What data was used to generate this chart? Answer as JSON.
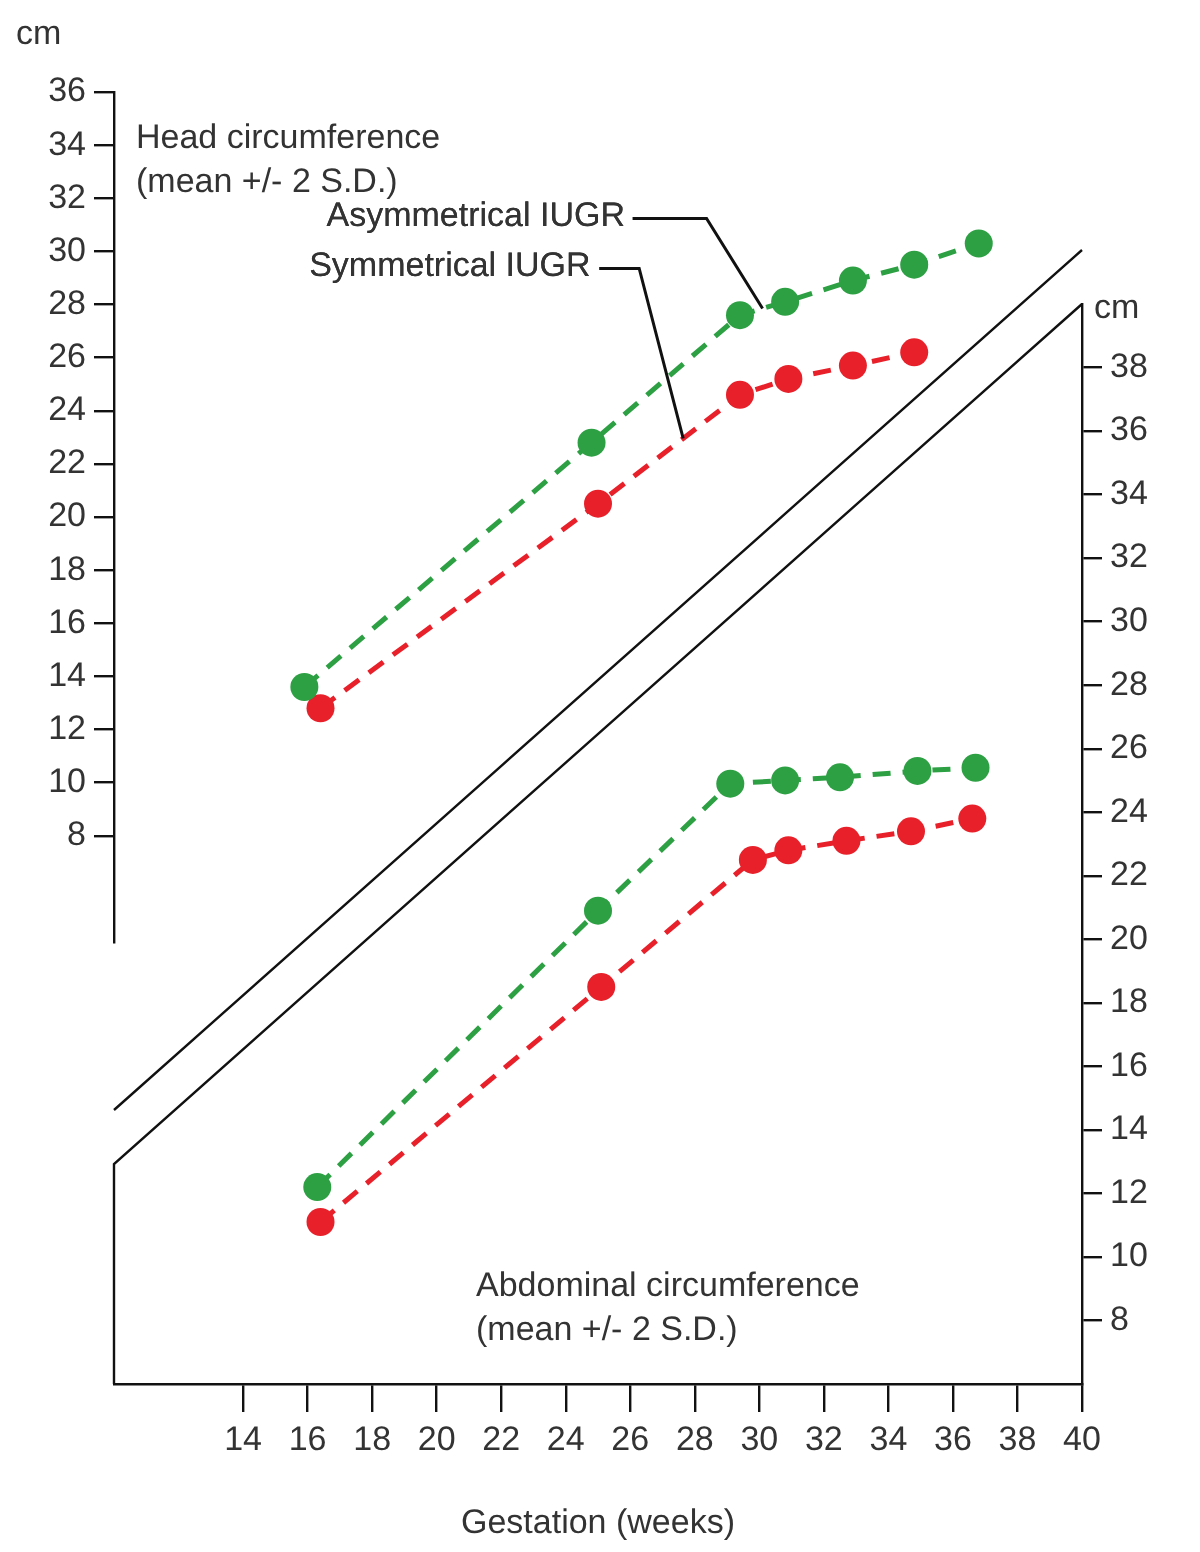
{
  "chart_data": [
    {
      "type": "line",
      "title": "Head circumference (mean +/- 2 S.D.)",
      "ylabel": "cm",
      "xlim": [
        10,
        40
      ],
      "xticks": [
        14,
        16,
        18,
        20,
        22,
        24,
        26,
        28,
        30,
        32,
        34,
        36,
        38,
        40
      ],
      "ylim": [
        4,
        36
      ],
      "yticks": [
        8,
        10,
        12,
        14,
        16,
        18,
        20,
        22,
        24,
        26,
        28,
        30,
        32,
        34,
        36
      ],
      "tick_labels": "y",
      "grid": false,
      "legend": false,
      "marker": "circle",
      "line_style": "dashed",
      "series": [
        {
          "name": "Asymmetrical IUGR",
          "color": "#2ca043",
          "x": [
            15.9,
            24.8,
            29.4,
            30.8,
            32.9,
            34.8,
            36.8
          ],
          "values": [
            13.6,
            22.8,
            27.6,
            28.1,
            28.9,
            29.5,
            30.3
          ]
        },
        {
          "name": "Symmetrical IUGR",
          "color": "#e8202a",
          "x": [
            16.4,
            25.0,
            29.4,
            30.9,
            32.9,
            34.8
          ],
          "values": [
            12.8,
            20.5,
            24.6,
            25.2,
            25.7,
            26.2
          ]
        }
      ]
    },
    {
      "type": "line",
      "title": "Abdominal circumference (mean +/- 2 S.D.)",
      "xlabel": "Gestation (weeks)",
      "y2label": "cm",
      "xlim": [
        10,
        40
      ],
      "xticks": [
        14,
        16,
        18,
        20,
        22,
        24,
        26,
        28,
        30,
        32,
        34,
        36,
        38,
        40
      ],
      "y2lim": [
        6,
        40
      ],
      "y2ticks": [
        8,
        10,
        12,
        14,
        16,
        18,
        20,
        22,
        24,
        26,
        28,
        30,
        32,
        34,
        36,
        38
      ],
      "grid": false,
      "legend": false,
      "marker": "circle",
      "line_style": "dashed",
      "series": [
        {
          "color": "#2ca043",
          "axis": "y2",
          "x": [
            16.3,
            25.0,
            29.1,
            30.8,
            32.5,
            34.9,
            36.7
          ],
          "values": [
            12.2,
            20.9,
            24.9,
            25.0,
            25.1,
            25.3,
            25.4
          ]
        },
        {
          "color": "#e8202a",
          "axis": "y2",
          "x": [
            16.4,
            25.1,
            29.8,
            30.9,
            32.7,
            34.7,
            36.6
          ],
          "values": [
            11.1,
            18.5,
            22.5,
            22.8,
            23.1,
            23.4,
            23.8
          ]
        }
      ]
    }
  ]
}
